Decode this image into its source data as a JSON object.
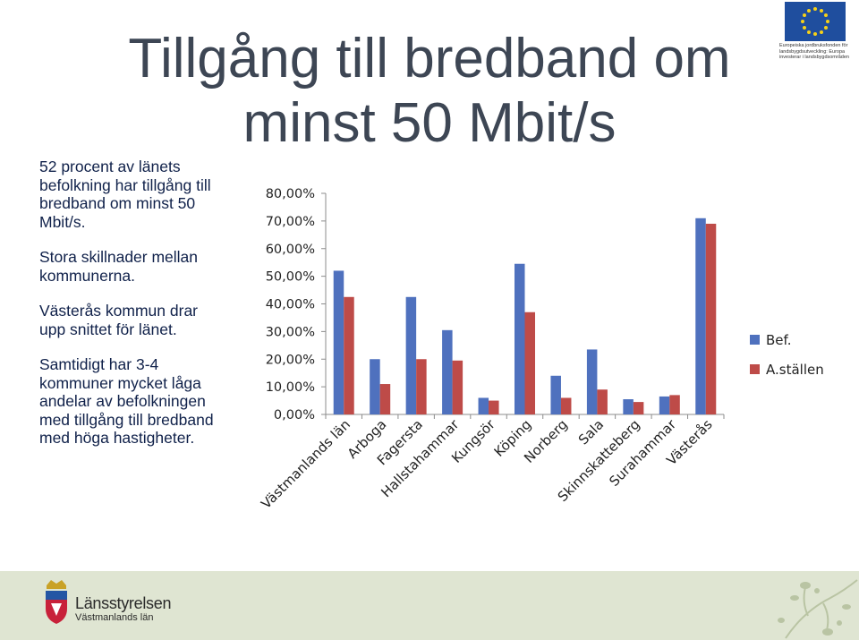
{
  "slide": {
    "title": "Tillgång till bredband om minst 50 Mbit/s",
    "paragraphs": [
      "52 procent av länets befolkning har tillgång till bredband om minst 50 Mbit/s.",
      "Stora skillnader mellan kommunerna.",
      "Västerås kommun drar upp snittet för länet.",
      "Samtidigt har 3-4 kommuner mycket låga andelar av befolkningen med tillgång till bredband med höga hastigheter."
    ]
  },
  "eu_logo": {
    "caption": "Europeiska jordbruksfonden för landsbygdsutveckling: Europa investerar i landsbygdsområden"
  },
  "footer": {
    "org_name": "Länsstyrelsen",
    "org_sub": "Västmanlands län"
  },
  "colors": {
    "series_bef": "#4f71be",
    "series_ast": "#be4b48",
    "title": "#3d4654",
    "body_text": "#10214a",
    "footer_bg": "#dfe5d2"
  },
  "chart_data": {
    "type": "bar",
    "title": "",
    "xlabel": "",
    "ylabel": "",
    "ylim": [
      0,
      80
    ],
    "y_ticks": [
      0,
      10,
      20,
      30,
      40,
      50,
      60,
      70,
      80
    ],
    "y_tick_labels": [
      "0,00%",
      "10,00%",
      "20,00%",
      "30,00%",
      "40,00%",
      "50,00%",
      "60,00%",
      "70,00%",
      "80,00%"
    ],
    "grid": false,
    "legend_position": "right",
    "categories": [
      "Västmanlands län",
      "Arboga",
      "Fagersta",
      "Hallstahammar",
      "Kungsör",
      "Köping",
      "Norberg",
      "Sala",
      "Skinnskatteberg",
      "Surahammar",
      "Västerås"
    ],
    "series": [
      {
        "name": "Bef.",
        "values": [
          52,
          20,
          42.5,
          30.5,
          6,
          54.5,
          14,
          23.5,
          5.5,
          6.5,
          71
        ]
      },
      {
        "name": "A.ställen",
        "values": [
          42.5,
          11,
          20,
          19.5,
          5,
          37,
          6,
          9,
          4.5,
          7,
          69
        ]
      }
    ]
  }
}
